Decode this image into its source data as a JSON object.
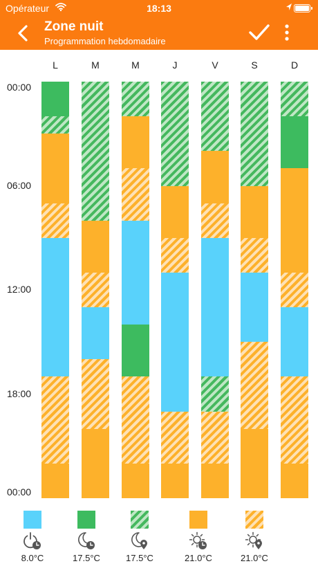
{
  "status_bar": {
    "carrier": "Opérateur",
    "time": "18:13"
  },
  "nav": {
    "title": "Zone nuit",
    "subtitle": "Programmation hebdomadaire"
  },
  "colors": {
    "header": "#fb7b10",
    "blue": "#59d2fb",
    "green": "#3dbb5f",
    "orange": "#fdb12b",
    "green_hatch": "#45b85e",
    "orange_hatch": "#fdb12b"
  },
  "days": [
    "L",
    "M",
    "M",
    "J",
    "V",
    "S",
    "D"
  ],
  "time_labels": [
    "00:00",
    "06:00",
    "12:00",
    "18:00",
    "00:00"
  ],
  "schedule": [
    {
      "day": "L",
      "segments": [
        {
          "from": 0,
          "to": 2,
          "mode": "green"
        },
        {
          "from": 2,
          "to": 3,
          "mode": "green_hatch"
        },
        {
          "from": 3,
          "to": 7,
          "mode": "orange"
        },
        {
          "from": 7,
          "to": 9,
          "mode": "orange_hatch"
        },
        {
          "from": 9,
          "to": 17,
          "mode": "blue"
        },
        {
          "from": 17,
          "to": 22,
          "mode": "orange_hatch"
        },
        {
          "from": 22,
          "to": 24,
          "mode": "orange"
        }
      ]
    },
    {
      "day": "M",
      "segments": [
        {
          "from": 0,
          "to": 8,
          "mode": "green_hatch"
        },
        {
          "from": 8,
          "to": 11,
          "mode": "orange"
        },
        {
          "from": 11,
          "to": 13,
          "mode": "orange_hatch"
        },
        {
          "from": 13,
          "to": 16,
          "mode": "blue"
        },
        {
          "from": 16,
          "to": 20,
          "mode": "orange_hatch"
        },
        {
          "from": 20,
          "to": 24,
          "mode": "orange"
        }
      ]
    },
    {
      "day": "M",
      "segments": [
        {
          "from": 0,
          "to": 2,
          "mode": "green_hatch"
        },
        {
          "from": 2,
          "to": 5,
          "mode": "orange"
        },
        {
          "from": 5,
          "to": 8,
          "mode": "orange_hatch"
        },
        {
          "from": 8,
          "to": 14,
          "mode": "blue"
        },
        {
          "from": 14,
          "to": 17,
          "mode": "green"
        },
        {
          "from": 17,
          "to": 22,
          "mode": "orange_hatch"
        },
        {
          "from": 22,
          "to": 24,
          "mode": "orange"
        }
      ]
    },
    {
      "day": "J",
      "segments": [
        {
          "from": 0,
          "to": 6,
          "mode": "green_hatch"
        },
        {
          "from": 6,
          "to": 9,
          "mode": "orange"
        },
        {
          "from": 9,
          "to": 11,
          "mode": "orange_hatch"
        },
        {
          "from": 11,
          "to": 19,
          "mode": "blue"
        },
        {
          "from": 19,
          "to": 22,
          "mode": "orange_hatch"
        },
        {
          "from": 22,
          "to": 24,
          "mode": "orange"
        }
      ]
    },
    {
      "day": "V",
      "segments": [
        {
          "from": 0,
          "to": 4,
          "mode": "green_hatch"
        },
        {
          "from": 4,
          "to": 7,
          "mode": "orange"
        },
        {
          "from": 7,
          "to": 9,
          "mode": "orange_hatch"
        },
        {
          "from": 9,
          "to": 17,
          "mode": "blue"
        },
        {
          "from": 17,
          "to": 19,
          "mode": "green_hatch"
        },
        {
          "from": 19,
          "to": 22,
          "mode": "orange_hatch"
        },
        {
          "from": 22,
          "to": 24,
          "mode": "orange"
        }
      ]
    },
    {
      "day": "S",
      "segments": [
        {
          "from": 0,
          "to": 6,
          "mode": "green_hatch"
        },
        {
          "from": 6,
          "to": 9,
          "mode": "orange"
        },
        {
          "from": 9,
          "to": 11,
          "mode": "orange_hatch"
        },
        {
          "from": 11,
          "to": 15,
          "mode": "blue"
        },
        {
          "from": 15,
          "to": 20,
          "mode": "orange_hatch"
        },
        {
          "from": 20,
          "to": 24,
          "mode": "orange"
        }
      ]
    },
    {
      "day": "D",
      "segments": [
        {
          "from": 0,
          "to": 2,
          "mode": "green_hatch"
        },
        {
          "from": 2,
          "to": 5,
          "mode": "green"
        },
        {
          "from": 5,
          "to": 11,
          "mode": "orange"
        },
        {
          "from": 11,
          "to": 13,
          "mode": "orange_hatch"
        },
        {
          "from": 13,
          "to": 17,
          "mode": "blue"
        },
        {
          "from": 17,
          "to": 22,
          "mode": "orange_hatch"
        },
        {
          "from": 22,
          "to": 24,
          "mode": "orange"
        }
      ]
    }
  ],
  "legend": [
    {
      "mode": "blue",
      "icon": "power-clock-icon",
      "temp": "8.0°C"
    },
    {
      "mode": "green",
      "icon": "moon-clock-icon",
      "temp": "17.5°C"
    },
    {
      "mode": "green_hatch",
      "icon": "moon-location-icon",
      "temp": "17.5°C"
    },
    {
      "mode": "orange",
      "icon": "sun-clock-icon",
      "temp": "21.0°C"
    },
    {
      "mode": "orange_hatch",
      "icon": "sun-location-icon",
      "temp": "21.0°C"
    }
  ]
}
